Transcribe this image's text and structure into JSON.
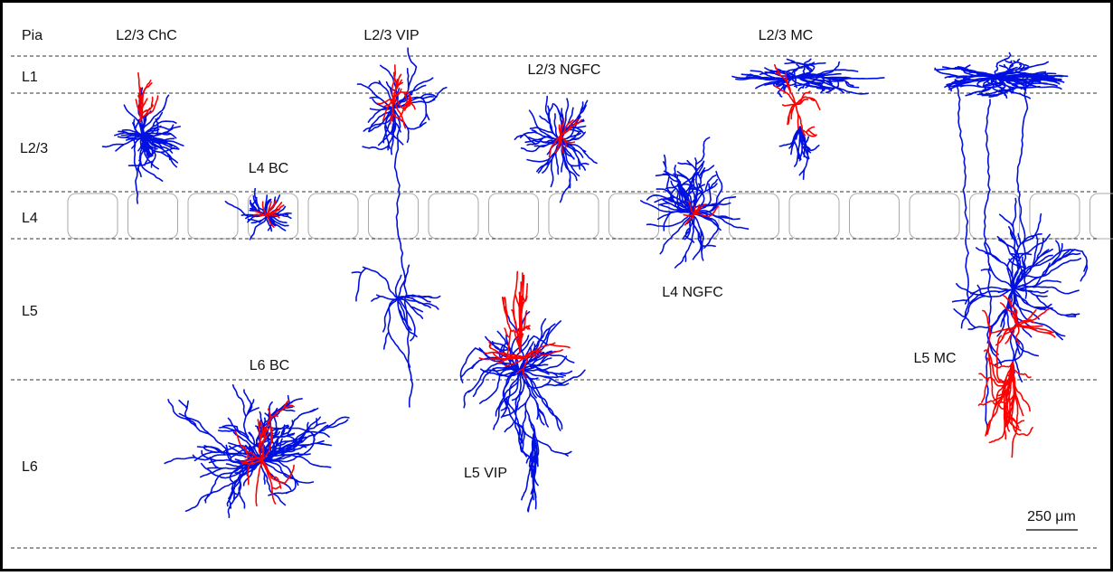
{
  "layers": [
    "Pia",
    "L1",
    "L2/3",
    "L4",
    "L5",
    "L6"
  ],
  "cells": [
    "L2/3 ChC",
    "L2/3 VIP",
    "L2/3 NGFC",
    "L2/3 MC",
    "L4 BC",
    "L4 NGFC",
    "L5 VIP",
    "L5 MC",
    "L6 BC"
  ],
  "scale_bar": "250 μm"
}
